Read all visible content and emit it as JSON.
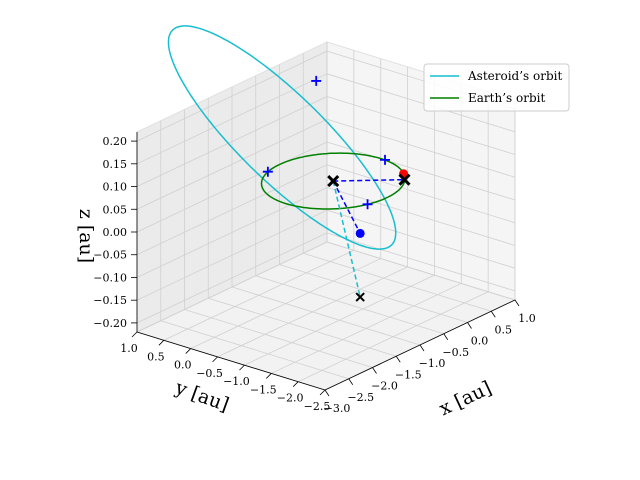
{
  "chart_data": {
    "type": "scatter",
    "projection": "3d",
    "xlabel": "x [au]",
    "ylabel": "y [au]",
    "zlabel": "z [au]",
    "xlim": [
      -3.0,
      1.0
    ],
    "ylim": [
      -2.5,
      1.0
    ],
    "zlim": [
      -0.22,
      0.22
    ],
    "xticks": [
      -3.0,
      -2.5,
      -2.0,
      -1.5,
      -1.0,
      -0.5,
      0.0,
      0.5,
      1.0
    ],
    "xtick_labels": [
      "−3.0",
      "−2.5",
      "−2.0",
      "−1.5",
      "−1.0",
      "−0.5",
      "0.0",
      "0.5",
      "1.0"
    ],
    "yticks": [
      -2.5,
      -2.0,
      -1.5,
      -1.0,
      -0.5,
      0.0,
      0.5,
      1.0
    ],
    "ytick_labels": [
      "−2.5",
      "−2.0",
      "−1.5",
      "−1.0",
      "−0.5",
      "0.0",
      "0.5",
      "1.0"
    ],
    "zticks": [
      -0.2,
      -0.15,
      -0.1,
      -0.05,
      0.0,
      0.05,
      0.1,
      0.15,
      0.2
    ],
    "ztick_labels": [
      "−0.20",
      "−0.15",
      "−0.10",
      "−0.05",
      "0.00",
      "0.05",
      "0.10",
      "0.15",
      "0.20"
    ],
    "grid": true,
    "legend_position": "top-right",
    "series": [
      {
        "name": "Asteroid’s orbit",
        "color": "#17becf",
        "kind": "orbit",
        "a": 1.6,
        "e": 0.45,
        "inclination_deg": 8,
        "node_deg": 30,
        "peri_deg": 280
      },
      {
        "name": "Earth’s orbit",
        "color": "#008000",
        "kind": "orbit",
        "a": 1.0,
        "e": 0.0,
        "inclination_deg": 0,
        "node_deg": 0,
        "peri_deg": 0
      }
    ],
    "markers": {
      "sun": {
        "point": [
          0.0,
          0.0,
          0.0
        ],
        "symbol": "x",
        "color": "#000000"
      },
      "earth_epoch": {
        "point": [
          0.63,
          -0.77,
          0.0
        ],
        "symbol": "x",
        "color": "#000000"
      },
      "earth_dot": {
        "point": [
          0.78,
          -0.62,
          0.0
        ],
        "symbol": "o",
        "color": "#ff0000"
      },
      "asteroid_dot": {
        "point": [
          -0.45,
          -0.9,
          -0.06
        ],
        "symbol": "o",
        "color": "#0000ff"
      },
      "asteroid_proj": {
        "point": [
          -0.45,
          -0.9,
          -0.2
        ],
        "symbol": "x",
        "color": "#000000"
      },
      "plus_marks": [
        {
          "point": [
            -0.29,
            0.96,
            0.0
          ],
          "color": "#0000ff"
        },
        {
          "point": [
            0.23,
            0.52,
            0.19
          ],
          "color": "#0000ff"
        },
        {
          "point": [
            1.0,
            -0.08,
            0.0
          ],
          "color": "#0000ff"
        },
        {
          "point": [
            -0.34,
            -0.94,
            0.0
          ],
          "color": "#0000ff"
        }
      ],
      "dashed_lines": [
        {
          "from": [
            0.0,
            0.0,
            0.0
          ],
          "to": [
            -0.45,
            -0.9,
            -0.06
          ],
          "color": "#0000ff"
        },
        {
          "from": [
            0.0,
            0.0,
            0.0
          ],
          "to": [
            0.63,
            -0.77,
            0.0
          ],
          "color": "#0000ff"
        },
        {
          "from": [
            0.0,
            0.0,
            0.0
          ],
          "to": [
            -0.45,
            -0.9,
            -0.2
          ],
          "color": "#17becf"
        }
      ]
    }
  }
}
